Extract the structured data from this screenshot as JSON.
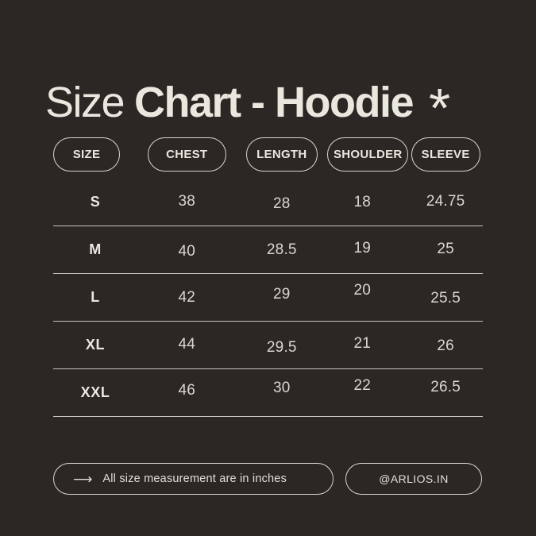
{
  "colors": {
    "background": "#2a2724",
    "text": "#eae7df",
    "muted_text": "#dad7cf",
    "border": "#d9d6cd",
    "divider": "#c9c6bd"
  },
  "title": {
    "regular": "Size",
    "bold": "Chart - Hoodie",
    "asterisk": "*"
  },
  "table": {
    "columns": [
      "SIZE",
      "CHEST",
      "LENGTH",
      "SHOULDER",
      "SLEEVE"
    ],
    "rows": [
      {
        "size": "S",
        "chest": "38",
        "length": "28",
        "shoulder": "18",
        "sleeve": "24.75"
      },
      {
        "size": "M",
        "chest": "40",
        "length": "28.5",
        "shoulder": "19",
        "sleeve": "25"
      },
      {
        "size": "L",
        "chest": "42",
        "length": "29",
        "shoulder": "20",
        "sleeve": "25.5"
      },
      {
        "size": "XL",
        "chest": "44",
        "length": "29.5",
        "shoulder": "21",
        "sleeve": "26"
      },
      {
        "size": "XXL",
        "chest": "46",
        "length": "30",
        "shoulder": "22",
        "sleeve": "26.5"
      }
    ]
  },
  "footer": {
    "arrow_icon": "⟶",
    "note": "All size measurement are in inches",
    "handle": "@ARLIOS.IN"
  },
  "chart_data": {
    "type": "table",
    "title": "Size Chart - Hoodie",
    "columns": [
      "SIZE",
      "CHEST",
      "LENGTH",
      "SHOULDER",
      "SLEEVE"
    ],
    "rows": [
      [
        "S",
        38,
        28,
        18,
        24.75
      ],
      [
        "M",
        40,
        28.5,
        19,
        25
      ],
      [
        "L",
        42,
        29,
        20,
        25.5
      ],
      [
        "XL",
        44,
        29.5,
        21,
        26
      ],
      [
        "XXL",
        46,
        30,
        22,
        26.5
      ]
    ],
    "units": "inches",
    "note": "All size measurement are in inches",
    "handle": "@ARLIOS.IN"
  }
}
